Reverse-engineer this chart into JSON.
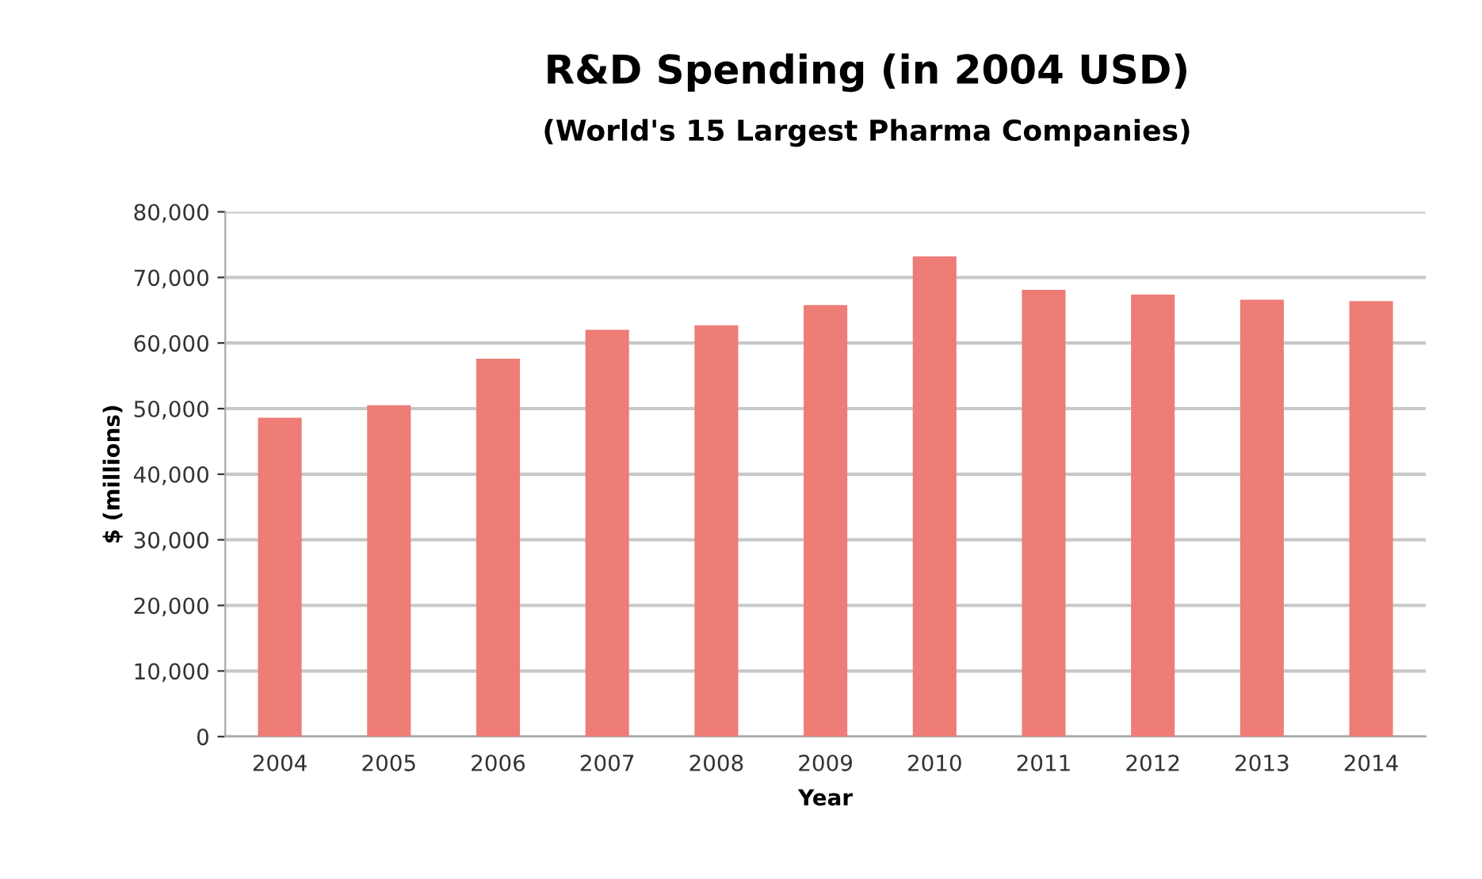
{
  "chart_data": {
    "type": "bar",
    "title": "R&D Spending (in 2004 USD)",
    "subtitle": "(World's 15 Largest Pharma Companies)",
    "xlabel": "Year",
    "ylabel": "$ (millions)",
    "categories": [
      "2004",
      "2005",
      "2006",
      "2007",
      "2008",
      "2009",
      "2010",
      "2011",
      "2012",
      "2013",
      "2014"
    ],
    "values": [
      48600,
      50500,
      57600,
      62000,
      62700,
      65800,
      73200,
      68100,
      67400,
      66600,
      66400
    ],
    "color": "#ee7c77",
    "ylim": [
      0,
      80000
    ],
    "yticks": [
      {
        "value": 0,
        "label": "0"
      },
      {
        "value": 10000,
        "label": "10,000"
      },
      {
        "value": 20000,
        "label": "20,000"
      },
      {
        "value": 30000,
        "label": "30,000"
      },
      {
        "value": 40000,
        "label": "40,000"
      },
      {
        "value": 50000,
        "label": "50,000"
      },
      {
        "value": 60000,
        "label": "60,000"
      },
      {
        "value": 70000,
        "label": "70,000"
      },
      {
        "value": 80000,
        "label": "80,000"
      }
    ],
    "grid": "y",
    "legend": false
  }
}
